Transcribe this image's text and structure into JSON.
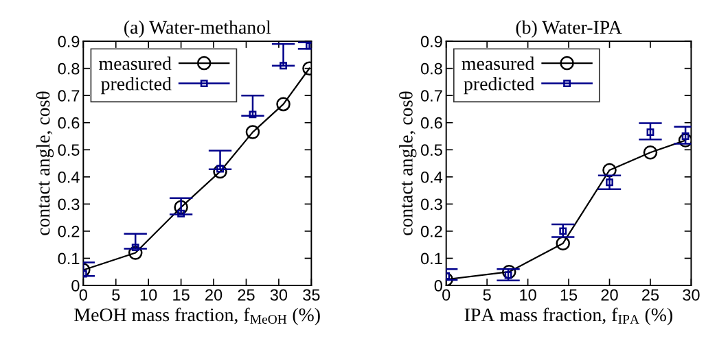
{
  "chart_data": [
    {
      "type": "line",
      "title": "(a) Water-methanol",
      "xlabel": "MeOH mass fraction, f$_{MeOH}$ (%)",
      "ylabel": "contact angle, cosθ",
      "xlim": [
        0,
        35
      ],
      "xticks": [
        0,
        5,
        10,
        15,
        20,
        25,
        30,
        35
      ],
      "ylim": [
        0,
        0.9
      ],
      "yticks": [
        0,
        0.1,
        0.2,
        0.3,
        0.4,
        0.5,
        0.6,
        0.7,
        0.8,
        0.9
      ],
      "grid": false,
      "legend": "top left",
      "series": [
        {
          "name": "measured",
          "color": "#000000",
          "marker": "circle",
          "x": [
            0,
            8,
            15,
            21,
            26,
            30.7,
            34.7
          ],
          "values": [
            0.057,
            0.12,
            0.288,
            0.42,
            0.565,
            0.668,
            0.8
          ]
        },
        {
          "name": "predicted",
          "type": "scatter",
          "color": "#00008b",
          "marker": "square",
          "x": [
            0,
            8,
            15,
            21,
            26,
            30.7,
            34.7
          ],
          "values": [
            0.043,
            0.14,
            0.265,
            0.43,
            0.63,
            0.81,
            0.883
          ],
          "errors": [
            [
              0.035,
              0.085
            ],
            [
              0.135,
              0.19
            ],
            [
              0.262,
              0.322
            ],
            [
              0.428,
              0.497
            ],
            [
              0.625,
              0.7
            ],
            [
              0.81,
              0.89
            ],
            [
              0.872,
              0.896
            ]
          ]
        }
      ]
    },
    {
      "type": "line",
      "title": "(b) Water-IPA",
      "xlabel": "IPA mass fraction, f$_{IPA}$ (%)",
      "ylabel": "contact angle, cosθ",
      "xlim": [
        0,
        30
      ],
      "xticks": [
        0,
        5,
        10,
        15,
        20,
        25,
        30
      ],
      "ylim": [
        0,
        0.9
      ],
      "yticks": [
        0,
        0.1,
        0.2,
        0.3,
        0.4,
        0.5,
        0.6,
        0.7,
        0.8,
        0.9
      ],
      "grid": false,
      "legend": "top left",
      "series": [
        {
          "name": "measured",
          "color": "#000000",
          "marker": "circle",
          "x": [
            0,
            7.7,
            14.3,
            20,
            25,
            29.3
          ],
          "values": [
            0.022,
            0.05,
            0.155,
            0.425,
            0.49,
            0.535
          ]
        },
        {
          "name": "predicted",
          "type": "scatter",
          "color": "#00008b",
          "marker": "square",
          "x": [
            0,
            7.6,
            14.3,
            20,
            25,
            29.3
          ],
          "values": [
            0.035,
            0.038,
            0.2,
            0.38,
            0.565,
            0.55
          ],
          "errors": [
            [
              0.02,
              0.06
            ],
            [
              0.018,
              0.06
            ],
            [
              0.178,
              0.225
            ],
            [
              0.355,
              0.405
            ],
            [
              0.538,
              0.598
            ],
            [
              0.522,
              0.585
            ]
          ]
        }
      ]
    }
  ]
}
